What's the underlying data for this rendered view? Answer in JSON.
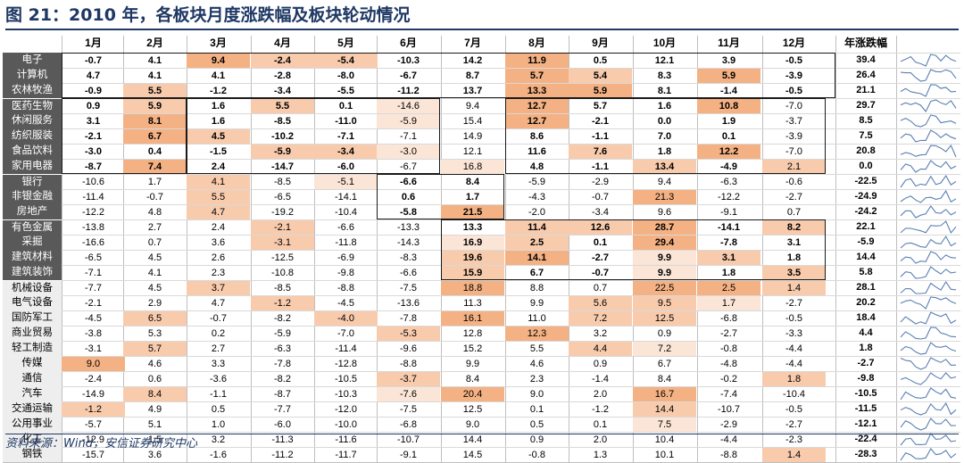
{
  "title": "图 21：2010 年，各板块月度涨跌幅及板块轮动情况",
  "source": "资料来源：Wind，安信证券研究中心",
  "columns": [
    "1月",
    "2月",
    "3月",
    "4月",
    "5月",
    "6月",
    "7月",
    "8月",
    "9月",
    "10月",
    "11月",
    "12月",
    "年涨跌幅"
  ],
  "colors": {
    "title": "#1f3864",
    "label_bg": "#595959",
    "label_alt_bg": "#eeeeee",
    "heat_strong": "#f4b183",
    "heat_mid": "#f8cbad",
    "heat_light": "#fbe5d6"
  },
  "chart_data": {
    "type": "table",
    "categories": [
      "1月",
      "2月",
      "3月",
      "4月",
      "5月",
      "6月",
      "7月",
      "8月",
      "9月",
      "10月",
      "11月",
      "12月"
    ],
    "series": [
      {
        "name": "电子",
        "values": [
          -0.7,
          4.1,
          9.4,
          -2.4,
          -5.4,
          -10.3,
          14.2,
          11.9,
          0.5,
          12.1,
          3.9,
          -0.5
        ],
        "annual": "39.4"
      },
      {
        "name": "计算机",
        "values": [
          4.7,
          4.1,
          4.1,
          -2.8,
          -8.0,
          -6.7,
          8.7,
          5.7,
          5.4,
          8.3,
          5.9,
          -3.9
        ],
        "annual": "26.4"
      },
      {
        "name": "农林牧渔",
        "values": [
          -0.9,
          5.5,
          -1.2,
          -3.4,
          -5.5,
          -11.2,
          13.7,
          13.3,
          5.9,
          8.1,
          -1.4,
          -0.5
        ],
        "annual": "21.1"
      },
      {
        "name": "医药生物",
        "values": [
          0.9,
          5.9,
          1.6,
          5.5,
          0.1,
          -14.6,
          9.4,
          12.7,
          5.7,
          1.6,
          10.8,
          -7.0
        ],
        "annual": "29.7"
      },
      {
        "name": "休闲服务",
        "values": [
          3.1,
          8.1,
          1.6,
          -8.5,
          -11.0,
          -5.9,
          15.4,
          12.7,
          -2.1,
          0.0,
          1.9,
          -3.7
        ],
        "annual": "8.5"
      },
      {
        "name": "纺织服装",
        "values": [
          -2.1,
          6.7,
          4.5,
          -10.2,
          -7.1,
          -7.1,
          14.9,
          8.6,
          -1.1,
          7.0,
          0.1,
          -3.9
        ],
        "annual": "7.5"
      },
      {
        "name": "食品饮料",
        "values": [
          -3.0,
          0.4,
          -1.5,
          -5.9,
          -3.4,
          -3.0,
          12.1,
          11.6,
          7.6,
          1.8,
          12.2,
          -7.0
        ],
        "annual": "20.8"
      },
      {
        "name": "家用电器",
        "values": [
          -8.7,
          7.4,
          2.4,
          -14.7,
          -6.0,
          -6.7,
          16.8,
          4.8,
          -1.1,
          13.4,
          -4.9,
          2.1
        ],
        "annual": "0.0"
      },
      {
        "name": "银行",
        "values": [
          -10.6,
          1.7,
          4.1,
          -8.5,
          -5.1,
          -6.6,
          8.4,
          -5.9,
          -2.9,
          9.4,
          -6.3,
          -0.6
        ],
        "annual": "-22.5"
      },
      {
        "name": "非银金融",
        "values": [
          -11.4,
          -0.7,
          5.5,
          -6.5,
          -14.1,
          0.6,
          1.7,
          -4.3,
          -0.7,
          21.3,
          -12.2,
          -2.7
        ],
        "annual": "-24.9"
      },
      {
        "name": "房地产",
        "values": [
          -12.2,
          4.8,
          4.7,
          -19.2,
          -10.4,
          -5.8,
          21.5,
          -2.0,
          -3.4,
          9.6,
          -9.1,
          0.7
        ],
        "annual": "-24.2"
      },
      {
        "name": "有色金属",
        "values": [
          -13.8,
          2.7,
          2.4,
          -2.1,
          -6.6,
          -13.3,
          13.3,
          11.4,
          12.6,
          28.7,
          -14.1,
          8.2
        ],
        "annual": "22.1"
      },
      {
        "name": "采掘",
        "values": [
          -16.6,
          0.7,
          3.6,
          -3.1,
          -11.8,
          -14.3,
          16.9,
          2.5,
          0.1,
          29.4,
          -7.8,
          3.1
        ],
        "annual": "-5.9"
      },
      {
        "name": "建筑材料",
        "values": [
          -6.5,
          4.5,
          2.6,
          -12.5,
          -6.9,
          -8.3,
          19.6,
          14.1,
          -2.7,
          9.9,
          3.1,
          1.8
        ],
        "annual": "14.4"
      },
      {
        "name": "建筑装饰",
        "values": [
          -7.1,
          4.1,
          2.3,
          -10.8,
          -9.8,
          -6.6,
          15.9,
          6.7,
          -0.7,
          9.9,
          1.8,
          3.5
        ],
        "annual": "5.8"
      },
      {
        "name": "机械设备",
        "values": [
          -7.7,
          4.5,
          3.7,
          -8.5,
          -8.8,
          -7.5,
          18.8,
          8.8,
          0.7,
          22.5,
          2.5,
          1.4
        ],
        "annual": "28.1"
      },
      {
        "name": "电气设备",
        "values": [
          -2.1,
          2.9,
          4.7,
          -1.2,
          -4.5,
          -13.6,
          11.3,
          9.9,
          5.6,
          9.5,
          1.7,
          -2.7
        ],
        "annual": "20.2"
      },
      {
        "name": "国防军工",
        "values": [
          -4.5,
          6.5,
          -0.7,
          -8.2,
          -4.0,
          -7.8,
          16.1,
          11.0,
          7.2,
          12.5,
          -6.8,
          -0.5
        ],
        "annual": "18.4"
      },
      {
        "name": "商业贸易",
        "values": [
          -3.8,
          5.3,
          0.2,
          -5.9,
          -7.0,
          -5.3,
          12.8,
          12.3,
          3.2,
          0.9,
          -2.7,
          -3.3
        ],
        "annual": "4.4"
      },
      {
        "name": "轻工制造",
        "values": [
          -3.1,
          5.7,
          2.7,
          -6.3,
          -11.4,
          -9.6,
          15.2,
          5.5,
          4.4,
          7.2,
          -0.8,
          -4.4
        ],
        "annual": "1.8"
      },
      {
        "name": "传媒",
        "values": [
          9.0,
          4.6,
          3.3,
          -7.8,
          -12.8,
          -8.8,
          9.9,
          4.6,
          0.9,
          6.7,
          -4.8,
          -4.4
        ],
        "annual": "-2.7"
      },
      {
        "name": "通信",
        "values": [
          -2.4,
          0.6,
          -3.6,
          -8.2,
          -10.5,
          -3.7,
          8.4,
          2.3,
          -1.4,
          8.4,
          -0.2,
          1.8
        ],
        "annual": "-9.8"
      },
      {
        "name": "汽车",
        "values": [
          -14.9,
          8.4,
          -1.1,
          -8.7,
          -10.3,
          -7.6,
          20.4,
          9.0,
          2.0,
          16.7,
          -7.4,
          -10.4
        ],
        "annual": "-10.5"
      },
      {
        "name": "交通运输",
        "values": [
          -1.2,
          4.9,
          0.5,
          -7.7,
          -12.0,
          -7.5,
          12.5,
          0.1,
          -1.2,
          14.4,
          -10.7,
          -0.5
        ],
        "annual": "-11.5"
      },
      {
        "name": "公用事业",
        "values": [
          -5.7,
          5.1,
          1.0,
          -6.0,
          -10.0,
          -6.8,
          9.0,
          0.5,
          0.1,
          7.5,
          -2.9,
          -2.7
        ],
        "annual": "-12.1"
      },
      {
        "name": "化工",
        "values": [
          -12.9,
          1.5,
          3.2,
          -11.3,
          -11.6,
          -10.7,
          14.4,
          0.9,
          2.0,
          10.4,
          -4.4,
          -2.3
        ],
        "annual": "-22.4"
      },
      {
        "name": "钢铁",
        "values": [
          -15.7,
          3.6,
          -1.6,
          -11.2,
          -11.7,
          -9.1,
          14.5,
          -0.8,
          1.3,
          10.1,
          -8.8,
          1.4
        ],
        "annual": "-28.3"
      }
    ],
    "highlight_groups": [
      {
        "rows": [
          0,
          2
        ],
        "cols": [
          0,
          12
        ]
      },
      {
        "rows": [
          3,
          7
        ],
        "cols": [
          0,
          1
        ]
      },
      {
        "rows": [
          3,
          7
        ],
        "cols": [
          2,
          5
        ]
      },
      {
        "rows": [
          3,
          7
        ],
        "cols": [
          7,
          11
        ]
      },
      {
        "rows": [
          8,
          10
        ],
        "cols": [
          5,
          6
        ]
      },
      {
        "rows": [
          11,
          14
        ],
        "cols": [
          6,
          11
        ]
      }
    ],
    "bold_cells": [
      [
        0,
        0
      ],
      [
        0,
        1
      ],
      [
        0,
        2
      ],
      [
        0,
        3
      ],
      [
        0,
        4
      ],
      [
        0,
        5
      ],
      [
        0,
        6
      ],
      [
        0,
        7
      ],
      [
        0,
        8
      ],
      [
        0,
        9
      ],
      [
        0,
        10
      ],
      [
        0,
        11
      ],
      [
        1,
        0
      ],
      [
        1,
        1
      ],
      [
        1,
        2
      ],
      [
        1,
        3
      ],
      [
        1,
        4
      ],
      [
        1,
        5
      ],
      [
        1,
        6
      ],
      [
        1,
        7
      ],
      [
        1,
        8
      ],
      [
        1,
        9
      ],
      [
        1,
        10
      ],
      [
        1,
        11
      ],
      [
        2,
        0
      ],
      [
        2,
        1
      ],
      [
        2,
        2
      ],
      [
        2,
        3
      ],
      [
        2,
        4
      ],
      [
        2,
        5
      ],
      [
        2,
        6
      ],
      [
        2,
        7
      ],
      [
        2,
        8
      ],
      [
        2,
        9
      ],
      [
        2,
        10
      ],
      [
        2,
        11
      ],
      [
        3,
        0
      ],
      [
        3,
        1
      ],
      [
        3,
        2
      ],
      [
        3,
        3
      ],
      [
        3,
        4
      ],
      [
        3,
        7
      ],
      [
        3,
        8
      ],
      [
        3,
        9
      ],
      [
        3,
        10
      ],
      [
        4,
        0
      ],
      [
        4,
        1
      ],
      [
        4,
        2
      ],
      [
        4,
        3
      ],
      [
        4,
        4
      ],
      [
        4,
        7
      ],
      [
        4,
        8
      ],
      [
        4,
        9
      ],
      [
        4,
        10
      ],
      [
        5,
        0
      ],
      [
        5,
        1
      ],
      [
        5,
        2
      ],
      [
        5,
        3
      ],
      [
        5,
        4
      ],
      [
        5,
        7
      ],
      [
        5,
        8
      ],
      [
        5,
        9
      ],
      [
        5,
        10
      ],
      [
        6,
        0
      ],
      [
        6,
        1
      ],
      [
        6,
        2
      ],
      [
        6,
        3
      ],
      [
        6,
        4
      ],
      [
        6,
        7
      ],
      [
        6,
        8
      ],
      [
        6,
        9
      ],
      [
        6,
        10
      ],
      [
        7,
        0
      ],
      [
        7,
        1
      ],
      [
        7,
        2
      ],
      [
        7,
        3
      ],
      [
        7,
        4
      ],
      [
        7,
        7
      ],
      [
        7,
        8
      ],
      [
        7,
        9
      ],
      [
        7,
        10
      ],
      [
        8,
        5
      ],
      [
        8,
        6
      ],
      [
        9,
        5
      ],
      [
        9,
        6
      ],
      [
        10,
        5
      ],
      [
        10,
        6
      ],
      [
        11,
        6
      ],
      [
        11,
        7
      ],
      [
        11,
        8
      ],
      [
        11,
        9
      ],
      [
        11,
        10
      ],
      [
        11,
        11
      ],
      [
        12,
        6
      ],
      [
        12,
        7
      ],
      [
        12,
        8
      ],
      [
        12,
        9
      ],
      [
        12,
        10
      ],
      [
        12,
        11
      ],
      [
        13,
        6
      ],
      [
        13,
        7
      ],
      [
        13,
        8
      ],
      [
        13,
        9
      ],
      [
        13,
        10
      ],
      [
        13,
        11
      ],
      [
        14,
        6
      ],
      [
        14,
        7
      ],
      [
        14,
        8
      ],
      [
        14,
        9
      ],
      [
        14,
        10
      ],
      [
        14,
        11
      ]
    ],
    "shaded_cells": {
      "strong": [
        [
          0,
          2
        ],
        [
          0,
          7
        ],
        [
          1,
          7
        ],
        [
          1,
          10
        ],
        [
          2,
          7
        ],
        [
          2,
          8
        ],
        [
          3,
          7
        ],
        [
          3,
          10
        ],
        [
          4,
          1
        ],
        [
          4,
          7
        ],
        [
          5,
          1
        ],
        [
          6,
          10
        ],
        [
          7,
          1
        ],
        [
          9,
          9
        ],
        [
          10,
          6
        ],
        [
          11,
          9
        ],
        [
          12,
          9
        ],
        [
          13,
          7
        ],
        [
          15,
          6
        ],
        [
          15,
          9
        ],
        [
          15,
          10
        ],
        [
          17,
          6
        ],
        [
          18,
          7
        ],
        [
          20,
          0
        ],
        [
          22,
          6
        ],
        [
          22,
          9
        ]
      ],
      "mid": [
        [
          0,
          3
        ],
        [
          0,
          4
        ],
        [
          1,
          8
        ],
        [
          2,
          1
        ],
        [
          3,
          1
        ],
        [
          3,
          3
        ],
        [
          5,
          2
        ],
        [
          6,
          3
        ],
        [
          6,
          4
        ],
        [
          6,
          8
        ],
        [
          7,
          9
        ],
        [
          7,
          11
        ],
        [
          8,
          2
        ],
        [
          9,
          2
        ],
        [
          10,
          2
        ],
        [
          11,
          3
        ],
        [
          11,
          7
        ],
        [
          11,
          8
        ],
        [
          11,
          11
        ],
        [
          12,
          3
        ],
        [
          12,
          7
        ],
        [
          13,
          6
        ],
        [
          13,
          10
        ],
        [
          14,
          6
        ],
        [
          14,
          11
        ],
        [
          15,
          2
        ],
        [
          15,
          11
        ],
        [
          16,
          3
        ],
        [
          16,
          8
        ],
        [
          16,
          9
        ],
        [
          17,
          1
        ],
        [
          17,
          4
        ],
        [
          17,
          8
        ],
        [
          17,
          9
        ],
        [
          18,
          5
        ],
        [
          19,
          1
        ],
        [
          19,
          8
        ],
        [
          21,
          5
        ],
        [
          21,
          11
        ],
        [
          22,
          1
        ],
        [
          23,
          0
        ],
        [
          23,
          9
        ],
        [
          26,
          11
        ]
      ],
      "light": [
        [
          3,
          5
        ],
        [
          4,
          5
        ],
        [
          6,
          5
        ],
        [
          7,
          6
        ],
        [
          8,
          4
        ],
        [
          12,
          6
        ],
        [
          13,
          9
        ],
        [
          14,
          9
        ],
        [
          16,
          10
        ],
        [
          19,
          9
        ],
        [
          22,
          5
        ],
        [
          24,
          9
        ]
      ]
    }
  }
}
